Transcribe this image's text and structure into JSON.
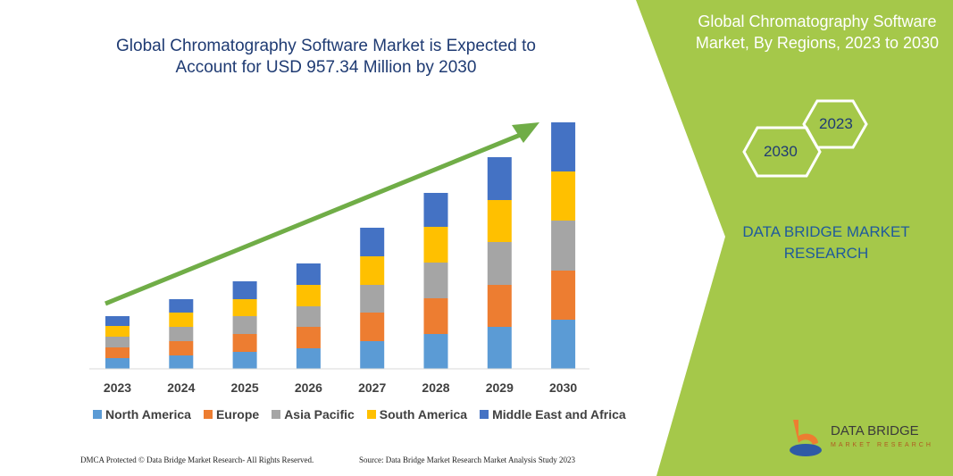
{
  "title": "Global Chromatography Software Market is Expected to Account for USD 957.34 Million by 2030",
  "side_panel": {
    "title": "Global Chromatography Software Market, By Regions, 2023 to 2030",
    "hex_start": "2023",
    "hex_end": "2030",
    "brand": "DATA BRIDGE MARKET RESEARCH",
    "logo_text": "DATA BRIDGE",
    "logo_sub": "MARKET RESEARCH",
    "accent": "#a5c84a"
  },
  "footer": {
    "left": "DMCA Protected © Data Bridge Market Research- All Rights Reserved.",
    "right": "Source: Data Bridge Market Research Market Analysis Study 2023"
  },
  "chart_data": {
    "type": "bar",
    "stacked": true,
    "title": "Global Chromatography Software Market is Expected to Account for USD 957.34 Million by 2030",
    "xlabel": "",
    "ylabel": "",
    "grid": false,
    "legend": "bottom",
    "trend_arrow": true,
    "categories": [
      "2023",
      "2024",
      "2025",
      "2026",
      "2027",
      "2028",
      "2029",
      "2030"
    ],
    "series": [
      {
        "name": "North America",
        "color": "#5b9bd5",
        "values": [
          12,
          15,
          19,
          23,
          31,
          39,
          47,
          55
        ]
      },
      {
        "name": "Europe",
        "color": "#ed7d31",
        "values": [
          12,
          16,
          20,
          24,
          32,
          40,
          47,
          55
        ]
      },
      {
        "name": "Asia Pacific",
        "color": "#a5a5a5",
        "values": [
          12,
          16,
          20,
          23,
          31,
          40,
          48,
          56
        ]
      },
      {
        "name": "South America",
        "color": "#ffc000",
        "values": [
          12,
          16,
          19,
          24,
          32,
          40,
          47,
          55
        ]
      },
      {
        "name": "Middle East and Africa",
        "color": "#4472c4",
        "values": [
          11,
          15,
          20,
          24,
          32,
          38,
          48,
          55
        ]
      }
    ]
  }
}
